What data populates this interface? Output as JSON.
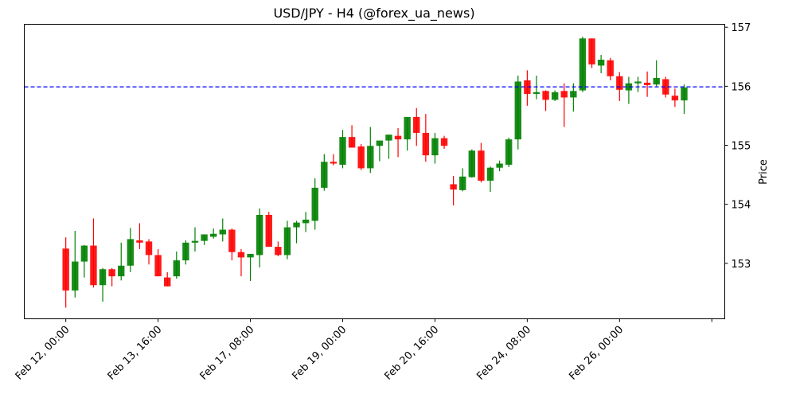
{
  "chart_data": {
    "type": "candlestick",
    "title": "USD/JPY - H4 (@forex_ua_news)",
    "xlabel": "",
    "ylabel": "Price",
    "y_axis_position": "right",
    "ylim": [
      152.06,
      157.05
    ],
    "yticks": [
      153,
      154,
      155,
      156,
      157
    ],
    "xtick_labels": [
      "Feb 12, 00:00",
      "Feb 13, 16:00",
      "Feb 17, 08:00",
      "Feb 19, 00:00",
      "Feb 20, 16:00",
      "Feb 24, 08:00",
      "Feb 26, 00:00",
      ""
    ],
    "xtick_bar_index": [
      0,
      10,
      20,
      30,
      40,
      50,
      60,
      70
    ],
    "xlim_bars": [
      -4.5,
      71.4
    ],
    "grid": false,
    "legend": null,
    "up_color": "#008000",
    "down_color": "#ff0000",
    "reference_line": {
      "value": 155.99,
      "color": "#0000ff",
      "style": "dashed"
    },
    "candles": [
      {
        "o": 153.25,
        "h": 153.44,
        "l": 152.25,
        "c": 152.54
      },
      {
        "o": 152.54,
        "h": 153.55,
        "l": 152.42,
        "c": 153.03
      },
      {
        "o": 153.03,
        "h": 153.31,
        "l": 152.76,
        "c": 153.3
      },
      {
        "o": 153.3,
        "h": 153.76,
        "l": 152.59,
        "c": 152.63
      },
      {
        "o": 152.63,
        "h": 152.92,
        "l": 152.35,
        "c": 152.9
      },
      {
        "o": 152.9,
        "h": 152.92,
        "l": 152.61,
        "c": 152.78
      },
      {
        "o": 152.78,
        "h": 153.35,
        "l": 152.71,
        "c": 152.96
      },
      {
        "o": 152.96,
        "h": 153.6,
        "l": 152.85,
        "c": 153.41
      },
      {
        "o": 153.39,
        "h": 153.68,
        "l": 153.24,
        "c": 153.35
      },
      {
        "o": 153.37,
        "h": 153.41,
        "l": 152.98,
        "c": 153.14
      },
      {
        "o": 153.14,
        "h": 153.24,
        "l": 152.78,
        "c": 152.78
      },
      {
        "o": 152.76,
        "h": 152.85,
        "l": 152.61,
        "c": 152.61
      },
      {
        "o": 152.78,
        "h": 153.2,
        "l": 152.74,
        "c": 153.05
      },
      {
        "o": 153.05,
        "h": 153.39,
        "l": 152.98,
        "c": 153.35
      },
      {
        "o": 153.35,
        "h": 153.61,
        "l": 153.2,
        "c": 153.38
      },
      {
        "o": 153.38,
        "h": 153.49,
        "l": 153.31,
        "c": 153.49
      },
      {
        "o": 153.45,
        "h": 153.59,
        "l": 153.42,
        "c": 153.5
      },
      {
        "o": 153.49,
        "h": 153.76,
        "l": 153.37,
        "c": 153.57
      },
      {
        "o": 153.57,
        "h": 153.59,
        "l": 153.05,
        "c": 153.19
      },
      {
        "o": 153.19,
        "h": 153.24,
        "l": 152.78,
        "c": 153.1
      },
      {
        "o": 153.1,
        "h": 153.16,
        "l": 152.7,
        "c": 153.16
      },
      {
        "o": 153.14,
        "h": 153.93,
        "l": 152.93,
        "c": 153.82
      },
      {
        "o": 153.82,
        "h": 153.87,
        "l": 153.3,
        "c": 153.28
      },
      {
        "o": 153.28,
        "h": 153.37,
        "l": 153.12,
        "c": 153.14
      },
      {
        "o": 153.14,
        "h": 153.72,
        "l": 153.07,
        "c": 153.61
      },
      {
        "o": 153.61,
        "h": 153.72,
        "l": 153.34,
        "c": 153.69
      },
      {
        "o": 153.68,
        "h": 153.87,
        "l": 153.53,
        "c": 153.74
      },
      {
        "o": 153.72,
        "h": 154.44,
        "l": 153.57,
        "c": 154.28
      },
      {
        "o": 154.28,
        "h": 154.85,
        "l": 154.23,
        "c": 154.72
      },
      {
        "o": 154.72,
        "h": 154.85,
        "l": 154.66,
        "c": 154.69
      },
      {
        "o": 154.67,
        "h": 155.26,
        "l": 154.61,
        "c": 155.14
      },
      {
        "o": 155.14,
        "h": 155.34,
        "l": 154.96,
        "c": 154.96
      },
      {
        "o": 154.98,
        "h": 155.02,
        "l": 154.58,
        "c": 154.61
      },
      {
        "o": 154.61,
        "h": 155.31,
        "l": 154.53,
        "c": 154.99
      },
      {
        "o": 154.99,
        "h": 155.03,
        "l": 154.73,
        "c": 155.08
      },
      {
        "o": 155.08,
        "h": 155.18,
        "l": 154.77,
        "c": 155.18
      },
      {
        "o": 155.16,
        "h": 155.29,
        "l": 154.8,
        "c": 155.1
      },
      {
        "o": 155.1,
        "h": 155.48,
        "l": 154.91,
        "c": 155.48
      },
      {
        "o": 155.48,
        "h": 155.63,
        "l": 154.99,
        "c": 155.21
      },
      {
        "o": 155.21,
        "h": 155.53,
        "l": 154.72,
        "c": 154.83
      },
      {
        "o": 154.83,
        "h": 155.21,
        "l": 154.69,
        "c": 155.12
      },
      {
        "o": 155.12,
        "h": 155.16,
        "l": 154.94,
        "c": 154.99
      },
      {
        "o": 154.34,
        "h": 154.48,
        "l": 153.98,
        "c": 154.25
      },
      {
        "o": 154.24,
        "h": 154.61,
        "l": 154.22,
        "c": 154.47
      },
      {
        "o": 154.46,
        "h": 154.93,
        "l": 154.45,
        "c": 154.91
      },
      {
        "o": 154.91,
        "h": 155.04,
        "l": 154.37,
        "c": 154.4
      },
      {
        "o": 154.4,
        "h": 154.64,
        "l": 154.21,
        "c": 154.62
      },
      {
        "o": 154.62,
        "h": 154.74,
        "l": 154.56,
        "c": 154.69
      },
      {
        "o": 154.67,
        "h": 155.13,
        "l": 154.63,
        "c": 155.1
      },
      {
        "o": 155.1,
        "h": 156.18,
        "l": 154.93,
        "c": 156.08
      },
      {
        "o": 156.1,
        "h": 156.27,
        "l": 155.67,
        "c": 155.87
      },
      {
        "o": 155.87,
        "h": 156.18,
        "l": 155.78,
        "c": 155.9
      },
      {
        "o": 155.92,
        "h": 155.93,
        "l": 155.58,
        "c": 155.77
      },
      {
        "o": 155.77,
        "h": 155.93,
        "l": 155.75,
        "c": 155.9
      },
      {
        "o": 155.92,
        "h": 156.05,
        "l": 155.31,
        "c": 155.81
      },
      {
        "o": 155.81,
        "h": 156.05,
        "l": 155.57,
        "c": 155.92
      },
      {
        "o": 155.93,
        "h": 156.84,
        "l": 155.9,
        "c": 156.81
      },
      {
        "o": 156.81,
        "h": 156.81,
        "l": 156.31,
        "c": 156.37
      },
      {
        "o": 156.35,
        "h": 156.53,
        "l": 156.22,
        "c": 156.45
      },
      {
        "o": 156.44,
        "h": 156.48,
        "l": 156.1,
        "c": 156.17
      },
      {
        "o": 156.17,
        "h": 156.24,
        "l": 155.75,
        "c": 155.94
      },
      {
        "o": 155.93,
        "h": 156.16,
        "l": 155.7,
        "c": 156.05
      },
      {
        "o": 156.05,
        "h": 156.16,
        "l": 155.9,
        "c": 156.08
      },
      {
        "o": 156.06,
        "h": 156.25,
        "l": 155.82,
        "c": 156.02
      },
      {
        "o": 156.03,
        "h": 156.44,
        "l": 156.0,
        "c": 156.14
      },
      {
        "o": 156.12,
        "h": 156.16,
        "l": 155.81,
        "c": 155.86
      },
      {
        "o": 155.84,
        "h": 155.96,
        "l": 155.65,
        "c": 155.76
      },
      {
        "o": 155.76,
        "h": 156.03,
        "l": 155.53,
        "c": 155.98
      }
    ]
  }
}
